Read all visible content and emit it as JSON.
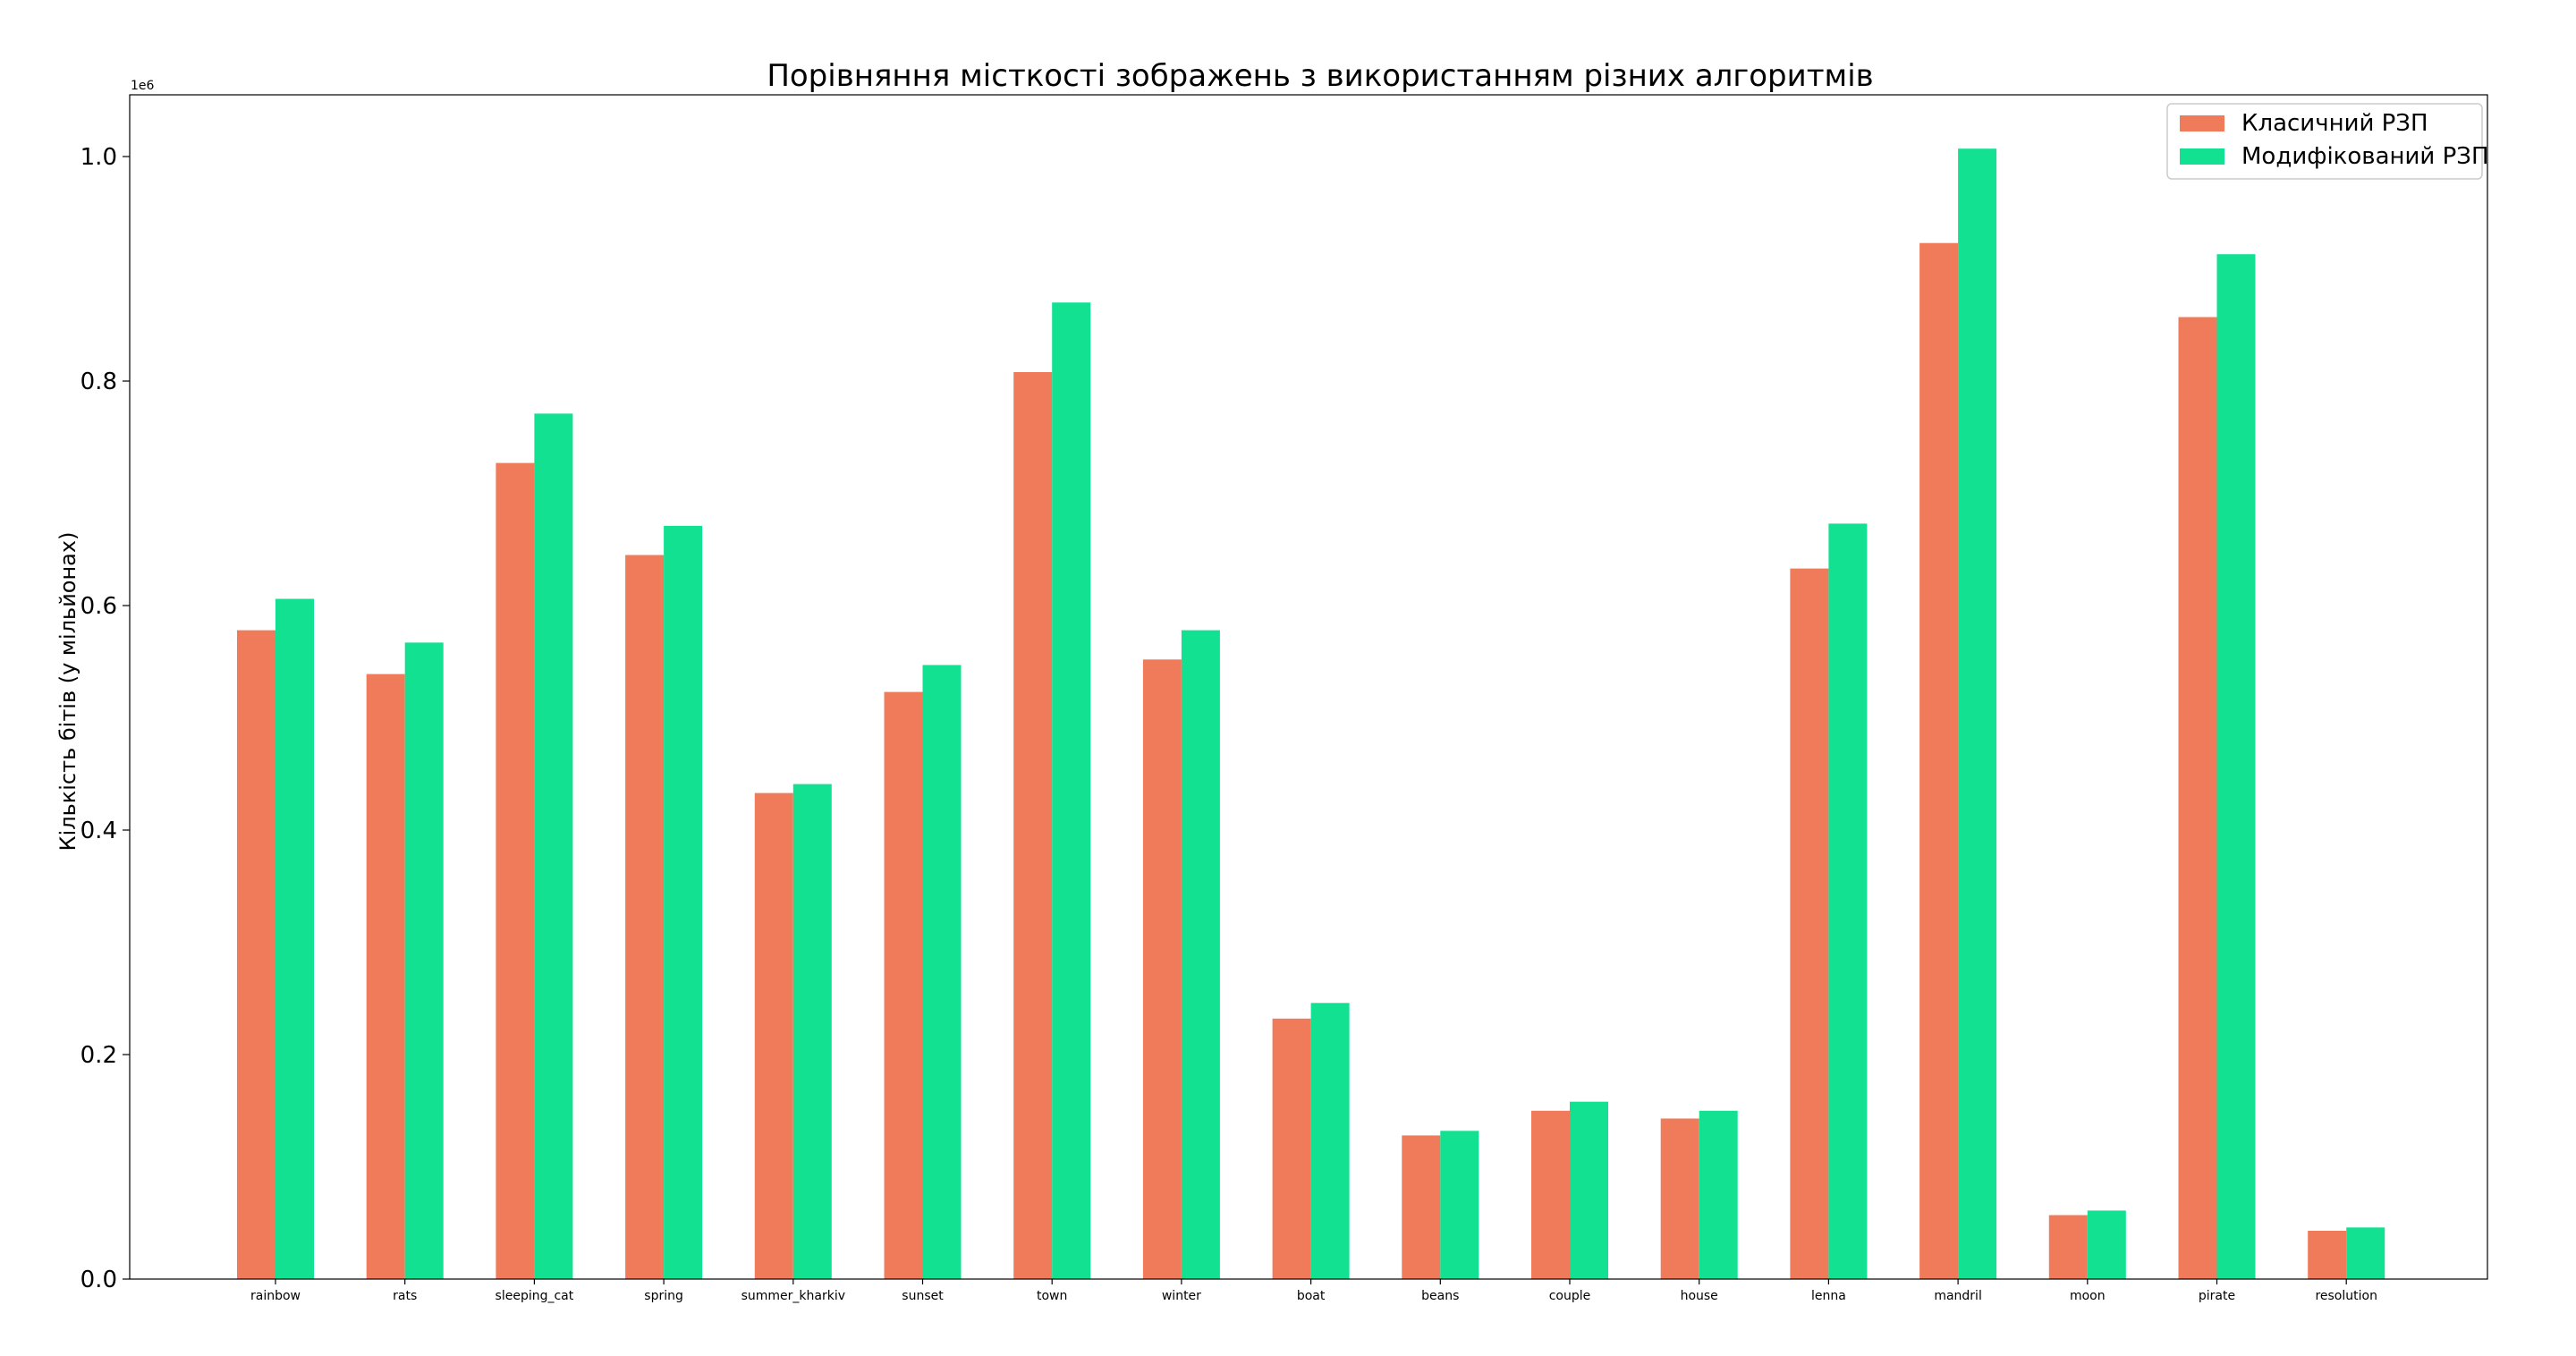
{
  "chart_data": {
    "type": "bar",
    "title": "Порівняння місткості зображень з використанням різних алгоритмів",
    "ylabel": "Кількість бітів (у мільйонах)",
    "xlabel": "",
    "y_offset_label": "1e6",
    "ylim": [
      0,
      1.055
    ],
    "yticks": [
      "0.0",
      "0.2",
      "0.4",
      "0.6",
      "0.8",
      "1.0"
    ],
    "legend_position": "top-right",
    "grid": false,
    "categories": [
      "rainbow",
      "rats",
      "sleeping_cat",
      "spring",
      "summer_kharkiv",
      "sunset",
      "town",
      "winter",
      "boat",
      "beans",
      "couple",
      "house",
      "lenna",
      "mandril",
      "moon",
      "pirate",
      "resolution"
    ],
    "series": [
      {
        "name": "Класичний РЗП",
        "color": "#ef7b5b",
        "values": [
          0.578,
          0.539,
          0.727,
          0.645,
          0.433,
          0.523,
          0.808,
          0.552,
          0.232,
          0.128,
          0.15,
          0.143,
          0.633,
          0.923,
          0.057,
          0.857,
          0.043
        ]
      },
      {
        "name": "Модифікований РЗП",
        "color": "#12e191",
        "values": [
          0.606,
          0.567,
          0.771,
          0.671,
          0.441,
          0.547,
          0.87,
          0.578,
          0.246,
          0.132,
          0.158,
          0.15,
          0.673,
          1.007,
          0.061,
          0.913,
          0.046
        ]
      }
    ]
  }
}
